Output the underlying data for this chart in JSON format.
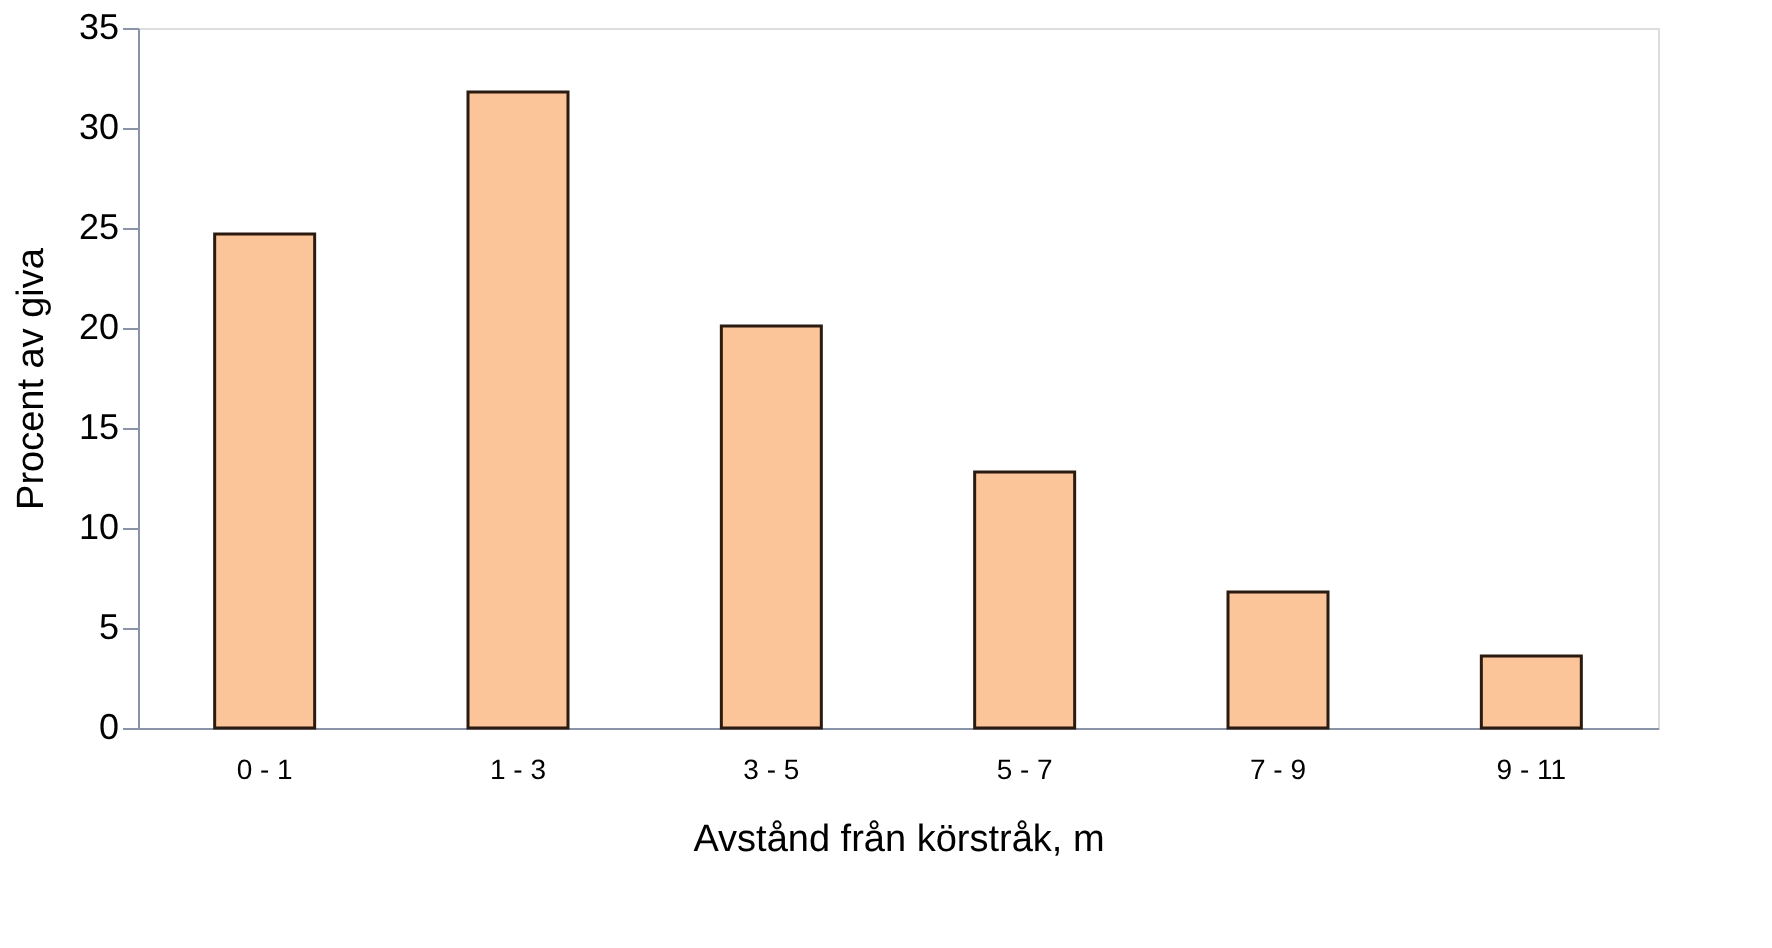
{
  "chart_data": {
    "type": "bar",
    "xlabel": "Avstånd från körstråk, m",
    "ylabel": "Procent av giva",
    "categories": [
      "0 - 1",
      "1 - 3",
      "3 - 5",
      "5 - 7",
      "7 - 9",
      "9 - 11"
    ],
    "values": [
      24.7,
      31.8,
      20.1,
      12.8,
      6.8,
      3.6
    ],
    "color": "#fbc599",
    "ylim": [
      0,
      35
    ],
    "yticks": [
      0,
      5,
      10,
      15,
      20,
      25,
      30,
      35
    ],
    "grid": false
  }
}
